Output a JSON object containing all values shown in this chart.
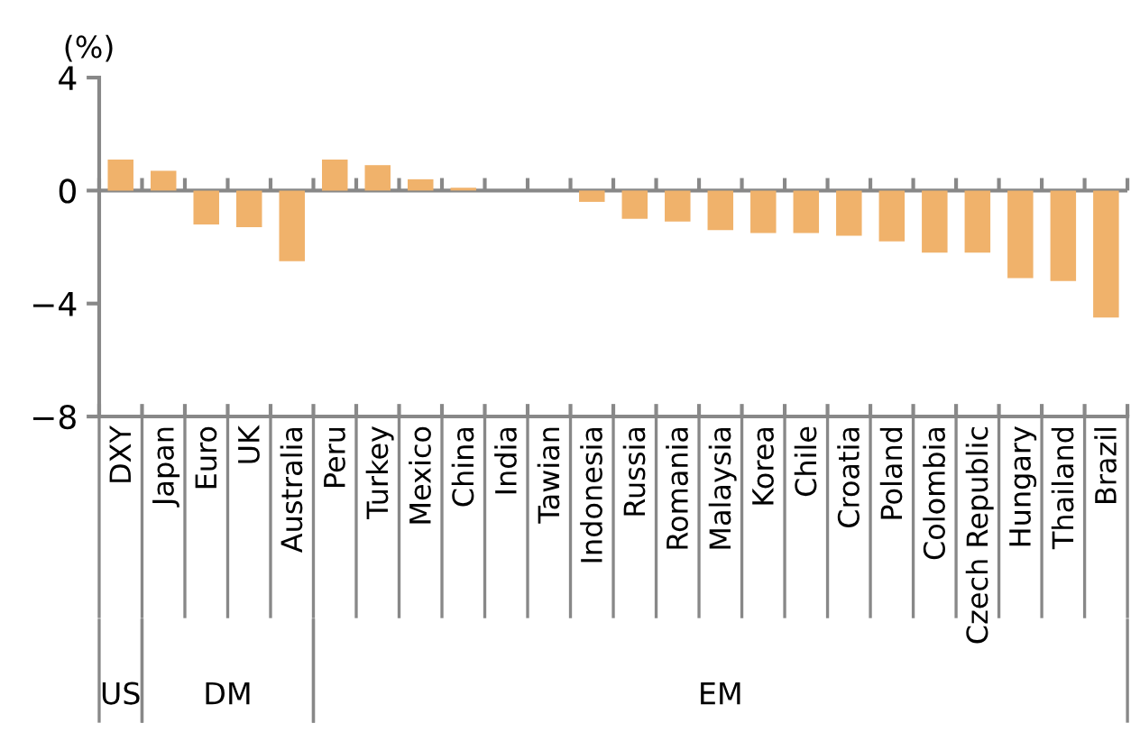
{
  "chart_data": {
    "type": "bar",
    "ylabel": "(%)",
    "categories": [
      "DXY",
      "Japan",
      "Euro",
      "UK",
      "Australia",
      "Peru",
      "Turkey",
      "Mexico",
      "China",
      "India",
      "Tawian",
      "Indonesia",
      "Russia",
      "Romania",
      "Malaysia",
      "Korea",
      "Chile",
      "Croatia",
      "Poland",
      "Colombia",
      "Czech Republic",
      "Hungary",
      "Thailand",
      "Brazil"
    ],
    "values": [
      1.1,
      0.7,
      -1.2,
      -1.3,
      -2.5,
      1.1,
      0.9,
      0.4,
      0.1,
      0,
      0,
      -0.4,
      -1.0,
      -1.1,
      -1.4,
      -1.5,
      -1.5,
      -1.6,
      -1.8,
      -2.2,
      -2.2,
      -3.1,
      -3.2,
      -4.5
    ],
    "color": "#f0b26b",
    "ylim": [
      -8,
      4
    ],
    "yticks": [
      {
        "value": -8,
        "label": "−8"
      },
      {
        "value": -4,
        "label": "−4"
      },
      0,
      4
    ],
    "grid": false,
    "legend": false,
    "ref_lines": [
      {
        "axis": "y",
        "value": 0,
        "color": "#888888"
      }
    ],
    "annotations": [
      "US",
      "DM",
      "EM"
    ]
  }
}
